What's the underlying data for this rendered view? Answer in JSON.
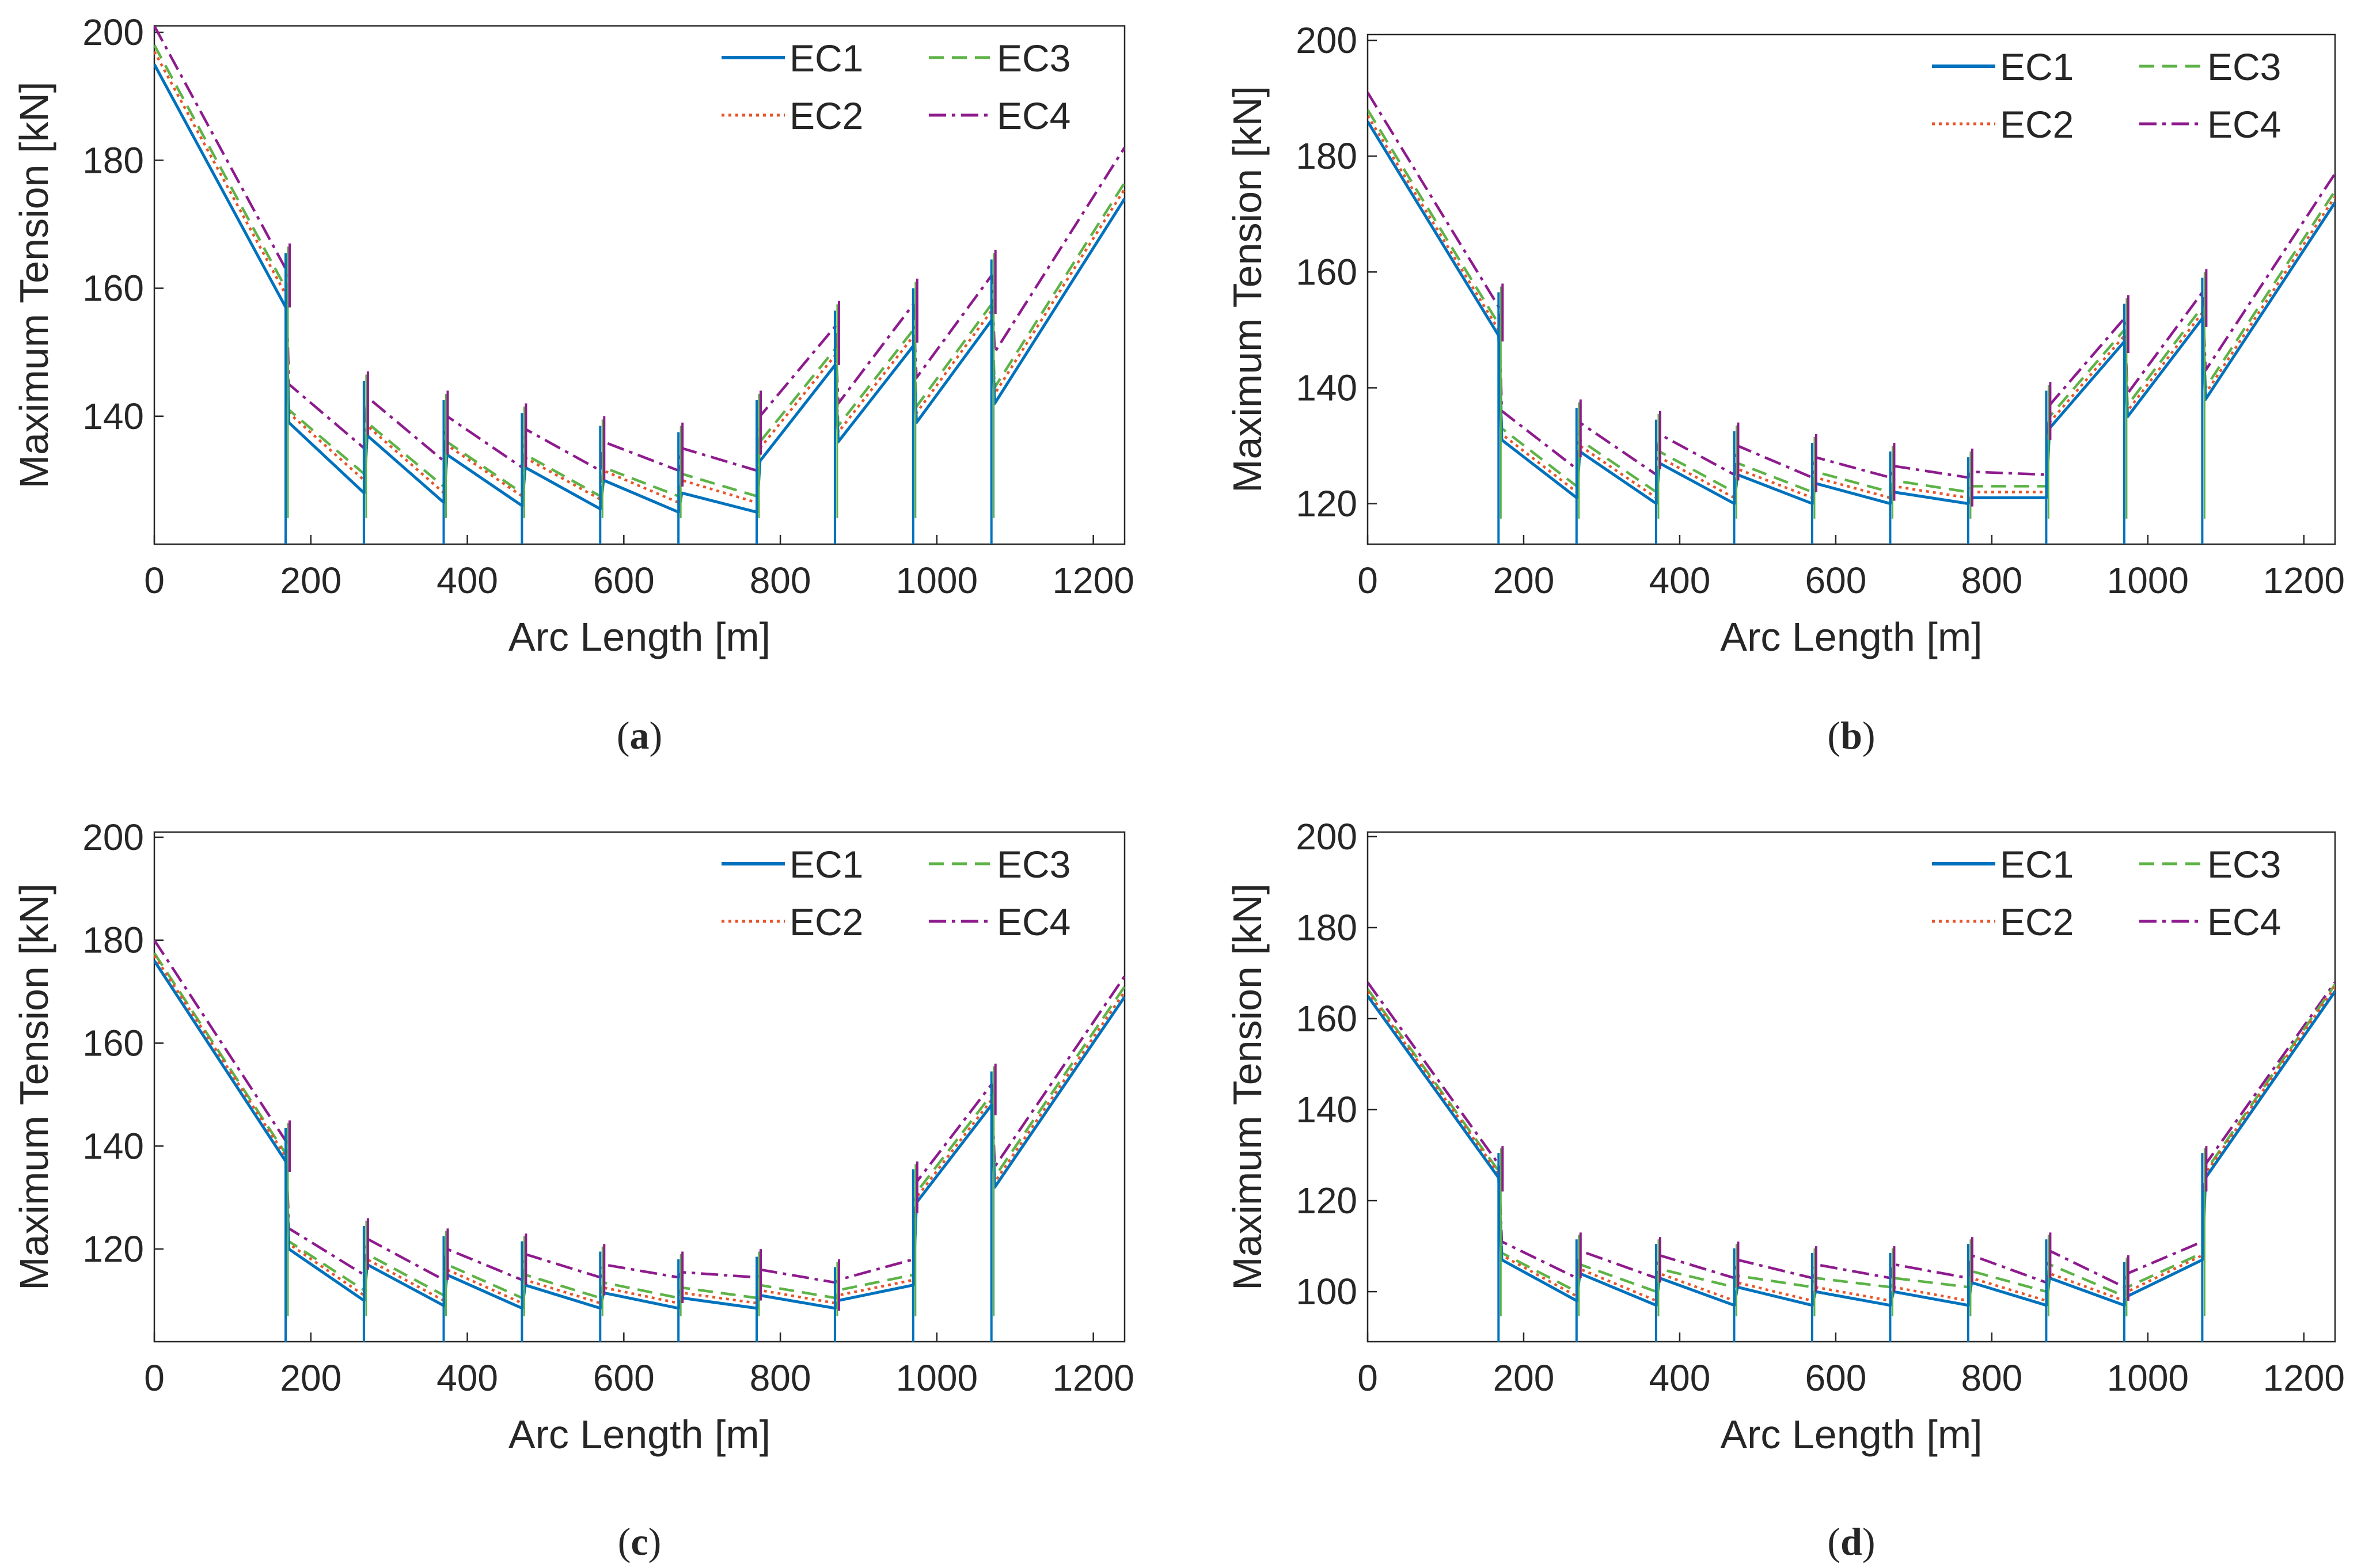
{
  "figure": {
    "panel_captions": [
      {
        "open": "(",
        "letter": "a",
        "close": ")"
      },
      {
        "open": "(",
        "letter": "b",
        "close": ")"
      },
      {
        "open": "(",
        "letter": "c",
        "close": ")"
      },
      {
        "open": "(",
        "letter": "d",
        "close": ")"
      }
    ]
  },
  "colors": {
    "EC1": "#0072BD",
    "EC2": "#E8552A",
    "EC3": "#5DB347",
    "EC4": "#8E1B8E",
    "axis": "#262626"
  },
  "chart_data": [
    {
      "type": "line",
      "panel": "a",
      "xlabel": "Arc Length [m]",
      "ylabel": "Maximum Tension [kN]",
      "xlim": [
        0,
        1240
      ],
      "ylim": [
        120,
        201
      ],
      "xticks": [
        0,
        200,
        400,
        600,
        800,
        1000,
        1200
      ],
      "yticks": [
        140,
        160,
        180,
        200
      ],
      "legend": [
        "EC1",
        "EC2",
        "EC3",
        "EC4"
      ],
      "segment_boundaries": [
        0,
        170,
        270,
        372,
        472,
        572,
        672,
        772,
        872,
        972,
        1072,
        1240
      ],
      "dip_to": 120,
      "series": [
        {
          "name": "EC1",
          "x": [
            0,
            168,
            172,
            268,
            272,
            370,
            374,
            470,
            474,
            570,
            574,
            670,
            674,
            770,
            774,
            870,
            874,
            970,
            974,
            1070,
            1074,
            1240
          ],
          "y": [
            195,
            157,
            139,
            128,
            137,
            126.5,
            134,
            126,
            132,
            125.5,
            130,
            125,
            128,
            125,
            133,
            148,
            136,
            151,
            139,
            155,
            142,
            174
          ]
        },
        {
          "name": "EC2",
          "x": [
            0,
            168,
            172,
            268,
            272,
            370,
            374,
            470,
            474,
            570,
            574,
            670,
            674,
            770,
            774,
            870,
            874,
            970,
            974,
            1070,
            1074,
            1240
          ],
          "y": [
            197,
            159,
            140.5,
            130,
            138.5,
            128,
            135.5,
            127.5,
            133.5,
            127,
            131.5,
            126.5,
            130,
            126.5,
            135,
            149.5,
            137.5,
            152.5,
            140.5,
            156.5,
            143.5,
            175.5
          ]
        },
        {
          "name": "EC3",
          "x": [
            0,
            168,
            172,
            268,
            272,
            370,
            374,
            470,
            474,
            570,
            574,
            670,
            674,
            770,
            774,
            870,
            874,
            970,
            974,
            1070,
            1074,
            1240
          ],
          "y": [
            198,
            160,
            141,
            131,
            139,
            129,
            136,
            128,
            134,
            127.5,
            132,
            127.5,
            131,
            127.5,
            136,
            150.5,
            138.5,
            153.5,
            141.5,
            157.5,
            144.5,
            176.5
          ]
        },
        {
          "name": "EC4",
          "x": [
            0,
            168,
            172,
            268,
            272,
            370,
            374,
            470,
            474,
            570,
            574,
            670,
            674,
            770,
            774,
            870,
            874,
            970,
            974,
            1070,
            1074,
            1240
          ],
          "y": [
            201,
            163,
            145,
            135,
            143,
            133,
            140,
            132,
            138,
            131.5,
            136,
            131.5,
            135,
            131.5,
            140,
            154,
            142,
            157.5,
            146,
            162,
            150,
            182
          ]
        }
      ]
    },
    {
      "type": "line",
      "panel": "b",
      "xlabel": "Arc Length [m]",
      "ylabel": "Maximum Tension [kN]",
      "xlim": [
        0,
        1240
      ],
      "ylim": [
        113,
        201
      ],
      "xticks": [
        0,
        200,
        400,
        600,
        800,
        1000,
        1200
      ],
      "yticks": [
        120,
        140,
        160,
        180,
        200
      ],
      "legend": [
        "EC1",
        "EC2",
        "EC3",
        "EC4"
      ],
      "segment_boundaries": [
        0,
        170,
        270,
        372,
        472,
        572,
        672,
        772,
        872,
        972,
        1072,
        1240
      ],
      "dip_to": 113,
      "series": [
        {
          "name": "EC1",
          "x": [
            0,
            168,
            172,
            268,
            272,
            370,
            374,
            470,
            474,
            570,
            574,
            670,
            674,
            770,
            774,
            870,
            874,
            970,
            974,
            1070,
            1074,
            1240
          ],
          "y": [
            186,
            149,
            131,
            121,
            129,
            120,
            127,
            120,
            125,
            120,
            123.5,
            120,
            122,
            120,
            121,
            121,
            133,
            148,
            135,
            152,
            138,
            172
          ]
        },
        {
          "name": "EC2",
          "x": [
            0,
            168,
            172,
            268,
            272,
            370,
            374,
            470,
            474,
            570,
            574,
            670,
            674,
            770,
            774,
            870,
            874,
            970,
            974,
            1070,
            1074,
            1240
          ],
          "y": [
            187,
            150,
            132,
            122,
            130,
            121,
            128,
            121,
            126,
            121,
            124.5,
            121,
            123,
            121,
            122,
            122,
            134,
            149,
            136,
            153,
            139,
            173
          ]
        },
        {
          "name": "EC3",
          "x": [
            0,
            168,
            172,
            268,
            272,
            370,
            374,
            470,
            474,
            570,
            574,
            670,
            674,
            770,
            774,
            870,
            874,
            970,
            974,
            1070,
            1074,
            1240
          ],
          "y": [
            188,
            151,
            133,
            123,
            131,
            122,
            129,
            122,
            127,
            122,
            125.5,
            122,
            124,
            122,
            123,
            123,
            135,
            150,
            137,
            154,
            140,
            174
          ]
        },
        {
          "name": "EC4",
          "x": [
            0,
            168,
            172,
            268,
            272,
            370,
            374,
            470,
            474,
            570,
            574,
            670,
            674,
            770,
            774,
            870,
            874,
            970,
            974,
            1070,
            1074,
            1240
          ],
          "y": [
            191,
            154,
            136,
            126,
            134,
            125,
            132,
            125,
            130,
            124.5,
            128,
            124.5,
            126.5,
            124.5,
            125.5,
            125,
            137,
            152,
            139,
            156.5,
            143,
            177
          ]
        }
      ]
    },
    {
      "type": "line",
      "panel": "c",
      "xlabel": "Arc Length [m]",
      "ylabel": "Maximum Tension [kN]",
      "xlim": [
        0,
        1240
      ],
      "ylim": [
        102,
        201
      ],
      "xticks": [
        0,
        200,
        400,
        600,
        800,
        1000,
        1200
      ],
      "yticks": [
        120,
        140,
        160,
        180,
        200
      ],
      "legend": [
        "EC1",
        "EC2",
        "EC3",
        "EC4"
      ],
      "segment_boundaries": [
        0,
        170,
        270,
        372,
        472,
        572,
        672,
        772,
        872,
        972,
        1072,
        1240
      ],
      "dip_to": 102,
      "series": [
        {
          "name": "EC1",
          "x": [
            0,
            168,
            172,
            268,
            272,
            370,
            374,
            470,
            474,
            570,
            574,
            670,
            674,
            770,
            774,
            870,
            874,
            970,
            974,
            1070,
            1074,
            1240
          ],
          "y": [
            176,
            137,
            120,
            110,
            117,
            109,
            115,
            108.5,
            113,
            108.5,
            111.5,
            108.5,
            110.5,
            108.5,
            111,
            108.5,
            110,
            113,
            129,
            148,
            132,
            169
          ]
        },
        {
          "name": "EC2",
          "x": [
            0,
            168,
            172,
            268,
            272,
            370,
            374,
            470,
            474,
            570,
            574,
            670,
            674,
            770,
            774,
            870,
            874,
            970,
            974,
            1070,
            1074,
            1240
          ],
          "y": [
            177,
            138,
            121,
            111,
            118,
            110,
            116,
            109.5,
            114,
            109.5,
            112.5,
            109.5,
            111.5,
            109.5,
            112,
            109.5,
            111,
            114,
            130,
            149,
            133,
            170
          ]
        },
        {
          "name": "EC3",
          "x": [
            0,
            168,
            172,
            268,
            272,
            370,
            374,
            470,
            474,
            570,
            574,
            670,
            674,
            770,
            774,
            870,
            874,
            970,
            974,
            1070,
            1074,
            1240
          ],
          "y": [
            177.5,
            138.5,
            121.5,
            112,
            119,
            111,
            117,
            110.5,
            115,
            110.5,
            113.5,
            110.5,
            112.5,
            110.5,
            113,
            110.5,
            112,
            115,
            131,
            150,
            134,
            171
          ]
        },
        {
          "name": "EC4",
          "x": [
            0,
            168,
            172,
            268,
            272,
            370,
            374,
            470,
            474,
            570,
            574,
            670,
            674,
            770,
            774,
            870,
            874,
            970,
            974,
            1070,
            1074,
            1240
          ],
          "y": [
            180,
            141,
            124,
            115,
            122,
            114,
            120,
            114,
            119,
            114.5,
            117,
            114.5,
            115.5,
            114.5,
            116,
            113.5,
            114,
            118,
            133,
            152,
            136,
            173
          ]
        }
      ]
    },
    {
      "type": "line",
      "panel": "d",
      "xlabel": "Arc Length [m]",
      "ylabel": "Maximum Tension [kN]",
      "xlim": [
        0,
        1240
      ],
      "ylim": [
        89,
        201
      ],
      "xticks": [
        0,
        200,
        400,
        600,
        800,
        1000,
        1200
      ],
      "yticks": [
        100,
        120,
        140,
        160,
        180,
        200
      ],
      "legend": [
        "EC1",
        "EC2",
        "EC3",
        "EC4"
      ],
      "segment_boundaries": [
        0,
        170,
        270,
        372,
        472,
        572,
        672,
        772,
        872,
        972,
        1072,
        1240
      ],
      "dip_to": 89,
      "series": [
        {
          "name": "EC1",
          "x": [
            0,
            168,
            172,
            268,
            272,
            370,
            374,
            470,
            474,
            570,
            574,
            670,
            674,
            770,
            774,
            870,
            874,
            970,
            974,
            1070,
            1074,
            1240
          ],
          "y": [
            165,
            125,
            107,
            98,
            104,
            97,
            103,
            97,
            101,
            97,
            100,
            97,
            100,
            97,
            102,
            97,
            103,
            97,
            99,
            107,
            125,
            166
          ]
        },
        {
          "name": "EC2",
          "x": [
            0,
            168,
            172,
            268,
            272,
            370,
            374,
            470,
            474,
            570,
            574,
            670,
            674,
            770,
            774,
            870,
            874,
            970,
            974,
            1070,
            1074,
            1240
          ],
          "y": [
            166,
            126,
            108,
            99,
            105,
            98,
            104,
            98,
            102,
            98,
            101,
            98,
            101,
            98,
            103,
            98,
            104,
            98,
            100,
            108,
            126,
            167
          ]
        },
        {
          "name": "EC3",
          "x": [
            0,
            168,
            172,
            268,
            272,
            370,
            374,
            470,
            474,
            570,
            574,
            670,
            674,
            770,
            774,
            870,
            874,
            970,
            974,
            1070,
            1074,
            1240
          ],
          "y": [
            166.5,
            126.5,
            108.5,
            100,
            106,
            100,
            105,
            101,
            103.5,
            101,
            103,
            101,
            103,
            101,
            104.5,
            100,
            106,
            99,
            101,
            108.5,
            126.5,
            167.5
          ]
        },
        {
          "name": "EC4",
          "x": [
            0,
            168,
            172,
            268,
            272,
            370,
            374,
            470,
            474,
            570,
            574,
            670,
            674,
            770,
            774,
            870,
            874,
            970,
            974,
            1070,
            1074,
            1240
          ],
          "y": [
            168,
            128,
            111,
            103,
            109,
            103,
            108,
            103,
            107,
            103,
            106,
            103,
            106,
            103,
            108,
            102,
            109,
            101,
            104,
            111,
            128,
            168
          ]
        }
      ]
    }
  ]
}
